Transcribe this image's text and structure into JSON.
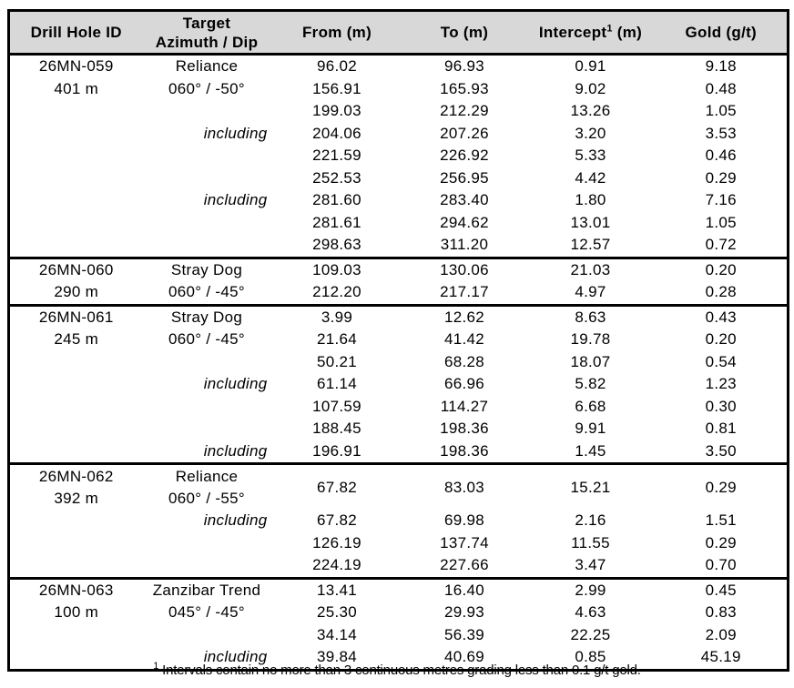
{
  "table": {
    "columns": [
      {
        "label": "Drill Hole ID"
      },
      {
        "label": "Target\nAzimuth / Dip"
      },
      {
        "label": "From (m)"
      },
      {
        "label": "To (m)"
      },
      {
        "label": "Intercept",
        "sup": "1",
        "suffix": " (m)"
      },
      {
        "label": "Gold (g/t)"
      }
    ],
    "sections": [
      {
        "rows": [
          {
            "c1": "26MN-059",
            "c2": "Reliance",
            "from": "96.02",
            "to": "96.93",
            "intercept": "0.91",
            "gold": "9.18"
          },
          {
            "c1": "401 m",
            "c2": "060° / -50°",
            "from": "156.91",
            "to": "165.93",
            "intercept": "9.02",
            "gold": "0.48"
          },
          {
            "from": "199.03",
            "to": "212.29",
            "intercept": "13.26",
            "gold": "1.05"
          },
          {
            "c2": "including",
            "including": true,
            "from": "204.06",
            "to": "207.26",
            "intercept": "3.20",
            "gold": "3.53"
          },
          {
            "from": "221.59",
            "to": "226.92",
            "intercept": "5.33",
            "gold": "0.46"
          },
          {
            "from": "252.53",
            "to": "256.95",
            "intercept": "4.42",
            "gold": "0.29"
          },
          {
            "c2": "including",
            "including": true,
            "from": "281.60",
            "to": "283.40",
            "intercept": "1.80",
            "gold": "7.16"
          },
          {
            "from": "281.61",
            "to": "294.62",
            "intercept": "13.01",
            "gold": "1.05"
          },
          {
            "from": "298.63",
            "to": "311.20",
            "intercept": "12.57",
            "gold": "0.72"
          }
        ]
      },
      {
        "rows": [
          {
            "c1": "26MN-060",
            "c2": "Stray Dog",
            "from": "109.03",
            "to": "130.06",
            "intercept": "21.03",
            "gold": "0.20"
          },
          {
            "c1": "290 m",
            "c2": "060° / -45°",
            "from": "212.20",
            "to": "217.17",
            "intercept": "4.97",
            "gold": "0.28"
          }
        ]
      },
      {
        "rows": [
          {
            "c1": "26MN-061",
            "c2": "Stray Dog",
            "from": "3.99",
            "to": "12.62",
            "intercept": "8.63",
            "gold": "0.43"
          },
          {
            "c1": "245 m",
            "c2": "060° / -45°",
            "from": "21.64",
            "to": "41.42",
            "intercept": "19.78",
            "gold": "0.20"
          },
          {
            "from": "50.21",
            "to": "68.28",
            "intercept": "18.07",
            "gold": "0.54"
          },
          {
            "c2": "including",
            "including": true,
            "from": "61.14",
            "to": "66.96",
            "intercept": "5.82",
            "gold": "1.23"
          },
          {
            "from": "107.59",
            "to": "114.27",
            "intercept": "6.68",
            "gold": "0.30"
          },
          {
            "from": "188.45",
            "to": "198.36",
            "intercept": "9.91",
            "gold": "0.81"
          },
          {
            "c2": "including",
            "including": true,
            "from": "196.91",
            "to": "198.36",
            "intercept": "1.45",
            "gold": "3.50"
          }
        ]
      },
      {
        "rows": [
          {
            "c1": "26MN-062\n392 m",
            "c2": "Reliance\n060° / -55°",
            "tall": true,
            "from": "67.82",
            "to": "83.03",
            "intercept": "15.21",
            "gold": "0.29"
          },
          {
            "c2": "including",
            "including": true,
            "from": "67.82",
            "to": "69.98",
            "intercept": "2.16",
            "gold": "1.51"
          },
          {
            "from": "126.19",
            "to": "137.74",
            "intercept": "11.55",
            "gold": "0.29"
          },
          {
            "from": "224.19",
            "to": "227.66",
            "intercept": "3.47",
            "gold": "0.70"
          }
        ]
      },
      {
        "rows": [
          {
            "c1": "26MN-063",
            "c2": "Zanzibar Trend",
            "from": "13.41",
            "to": "16.40",
            "intercept": "2.99",
            "gold": "0.45"
          },
          {
            "c1": "100 m",
            "c2": "045° / -45°",
            "from": "25.30",
            "to": "29.93",
            "intercept": "4.63",
            "gold": "0.83"
          },
          {
            "from": "34.14",
            "to": "56.39",
            "intercept": "22.25",
            "gold": "2.09"
          },
          {
            "c2": "including",
            "including": true,
            "from": "39.84",
            "to": "40.69",
            "intercept": "0.85",
            "gold": "45.19"
          }
        ]
      }
    ]
  },
  "footnote": {
    "sup": "1",
    "text": " Intervals contain no more than 3 continuous metres grading less than 0.1 g/t gold."
  },
  "colors": {
    "header_background": "#d8d8d8",
    "border": "#000000",
    "text": "#000000"
  }
}
